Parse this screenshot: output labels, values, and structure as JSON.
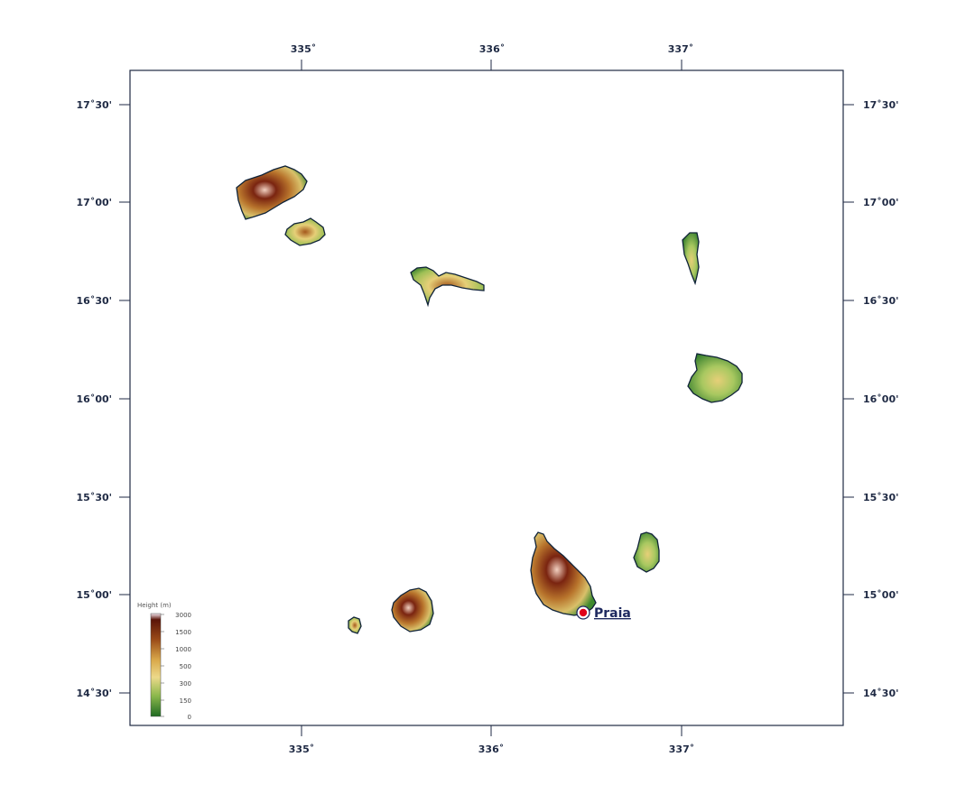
{
  "map": {
    "top_ticks": [
      "335˚",
      "336˚",
      "337˚"
    ],
    "bottom_ticks": [
      "335˚",
      "336˚",
      "337˚"
    ],
    "left_ticks": [
      "17˚30'",
      "17˚00'",
      "16˚30'",
      "16˚00'",
      "15˚30'",
      "15˚00'",
      "14˚30'"
    ],
    "right_ticks": [
      "17˚30'",
      "17˚00'",
      "16˚30'",
      "16˚00'",
      "15˚30'",
      "15˚00'",
      "14˚30'"
    ],
    "city": {
      "name": "Praia",
      "color": "#e0001a"
    },
    "legend": {
      "title": "Height  (m)",
      "labels": [
        "3000",
        "1500",
        "1000",
        "500",
        "300",
        "150",
        "0"
      ]
    },
    "colors": {
      "frame": "#1f2a44",
      "coast": "#0f2238",
      "low": "#3f8a2e",
      "mid": "#e6cf78",
      "high": "#7a2410"
    }
  }
}
